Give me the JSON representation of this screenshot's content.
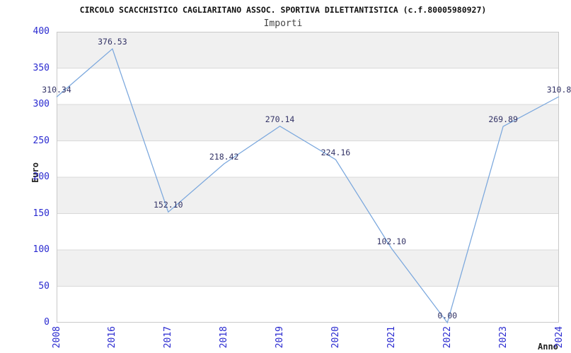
{
  "colors": {
    "background": "#ffffff",
    "line": "#7aa7dd",
    "tick_text": "#2a2ad0",
    "point_label_text": "#333366",
    "band_fill": "#f0f0f0",
    "grid_line": "#d9d9d9",
    "plot_border": "#c9c9c9",
    "title_text": "#111111",
    "subtitle_text": "#444444",
    "axis_title_text": "#222222"
  },
  "chart_data": {
    "type": "line",
    "title": "CIRCOLO SCACCHISTICO CAGLIARITANO ASSOC. SPORTIVA DILETTANTISTICA (c.f.80005980927)",
    "subtitle": "Importi",
    "xlabel": "Anno",
    "ylabel": "Euro",
    "categories": [
      "2008",
      "2016",
      "2017",
      "2018",
      "2019",
      "2020",
      "2021",
      "2022",
      "2023",
      "2024"
    ],
    "values": [
      310.34,
      376.53,
      152.1,
      218.42,
      270.14,
      224.16,
      102.1,
      0.0,
      269.89,
      310.8
    ],
    "point_labels": [
      "310.34",
      "376.53",
      "152.10",
      "218.42",
      "270.14",
      "224.16",
      "102.10",
      "0.00",
      "269.89",
      "310.8"
    ],
    "ylim": [
      0,
      400
    ],
    "ytick_step": 50,
    "grid": true,
    "banded_background": true,
    "legend": "none"
  }
}
